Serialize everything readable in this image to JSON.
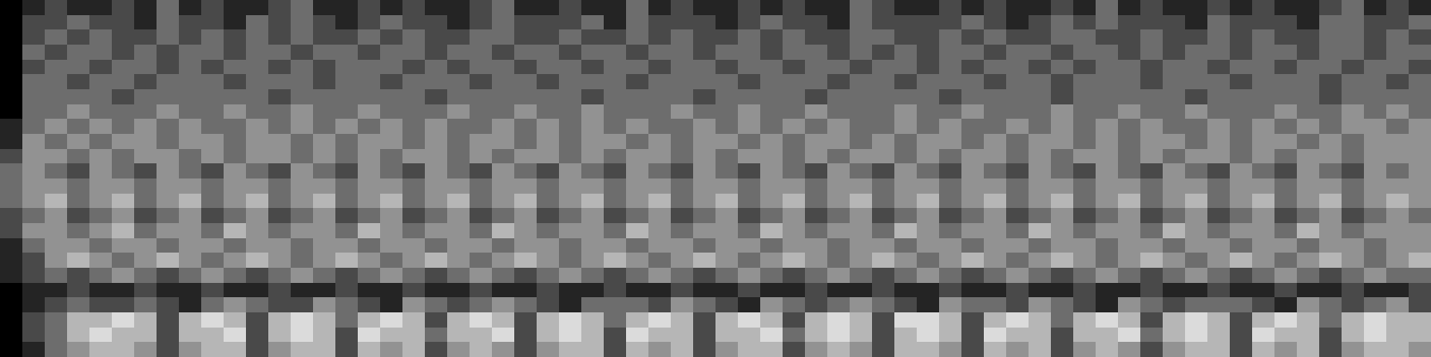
{
  "chart_data": {
    "type": "heatmap",
    "tick_labels": false,
    "zlim": [
      0,
      7
    ],
    "cells": [
      [
        0,
        1,
        2,
        1,
        1,
        2,
        1,
        3,
        1,
        2,
        1,
        1,
        2,
        3,
        1,
        1,
        2,
        1,
        2,
        1,
        1,
        2,
        3,
        1,
        1,
        2,
        1,
        1,
        3,
        1,
        2,
        1,
        1,
        2,
        1,
        2,
        1,
        1,
        3,
        2,
        1,
        1,
        2,
        1,
        2,
        1,
        1,
        2,
        1,
        3,
        1,
        2,
        1,
        1,
        2,
        1,
        2,
        1,
        1,
        2,
        3,
        1,
        2,
        1
      ],
      [
        0,
        2,
        2,
        3,
        2,
        2,
        1,
        3,
        2,
        2,
        1,
        3,
        2,
        3,
        2,
        1,
        2,
        3,
        2,
        2,
        1,
        2,
        3,
        2,
        2,
        2,
        3,
        1,
        3,
        2,
        2,
        2,
        1,
        2,
        3,
        2,
        2,
        1,
        3,
        2,
        2,
        2,
        2,
        3,
        2,
        1,
        2,
        3,
        2,
        3,
        2,
        2,
        2,
        1,
        3,
        2,
        2,
        2,
        1,
        3,
        3,
        2,
        2,
        3
      ],
      [
        0,
        2,
        3,
        2,
        3,
        2,
        2,
        3,
        2,
        3,
        2,
        3,
        2,
        3,
        2,
        2,
        3,
        2,
        3,
        2,
        2,
        3,
        3,
        2,
        2,
        3,
        2,
        2,
        3,
        2,
        3,
        2,
        2,
        3,
        2,
        3,
        2,
        2,
        3,
        3,
        2,
        2,
        3,
        2,
        3,
        2,
        2,
        3,
        3,
        2,
        2,
        3,
        2,
        2,
        3,
        2,
        3,
        2,
        2,
        3,
        3,
        2,
        3,
        2
      ],
      [
        0,
        3,
        2,
        3,
        3,
        2,
        3,
        2,
        3,
        3,
        2,
        3,
        3,
        2,
        3,
        3,
        2,
        3,
        3,
        2,
        3,
        3,
        2,
        3,
        3,
        2,
        3,
        3,
        2,
        3,
        3,
        2,
        3,
        3,
        2,
        3,
        3,
        2,
        3,
        2,
        3,
        2,
        3,
        3,
        2,
        3,
        3,
        2,
        3,
        3,
        2,
        3,
        2,
        3,
        3,
        2,
        3,
        3,
        2,
        3,
        3,
        2,
        3,
        3
      ],
      [
        0,
        2,
        3,
        3,
        2,
        3,
        3,
        2,
        3,
        2,
        3,
        3,
        2,
        3,
        2,
        3,
        3,
        3,
        2,
        3,
        2,
        3,
        3,
        2,
        3,
        3,
        2,
        3,
        3,
        2,
        3,
        3,
        2,
        3,
        3,
        2,
        3,
        3,
        2,
        3,
        3,
        2,
        3,
        2,
        3,
        3,
        2,
        3,
        2,
        3,
        3,
        2,
        3,
        3,
        2,
        3,
        3,
        2,
        3,
        3,
        2,
        3,
        3,
        2
      ],
      [
        0,
        3,
        3,
        2,
        3,
        3,
        2,
        3,
        3,
        3,
        2,
        3,
        3,
        3,
        2,
        3,
        3,
        2,
        3,
        3,
        3,
        2,
        3,
        3,
        2,
        3,
        3,
        3,
        2,
        3,
        3,
        3,
        3,
        2,
        3,
        3,
        3,
        2,
        3,
        3,
        2,
        3,
        3,
        3,
        2,
        3,
        3,
        2,
        3,
        3,
        3,
        2,
        3,
        3,
        3,
        2,
        3,
        3,
        3,
        2,
        3,
        3,
        2,
        3
      ],
      [
        0,
        3,
        3,
        3,
        3,
        2,
        3,
        3,
        3,
        3,
        3,
        3,
        2,
        3,
        3,
        3,
        3,
        3,
        3,
        2,
        3,
        3,
        3,
        3,
        3,
        3,
        2,
        3,
        3,
        3,
        3,
        2,
        3,
        3,
        3,
        3,
        2,
        3,
        3,
        3,
        3,
        3,
        2,
        3,
        3,
        3,
        3,
        2,
        3,
        3,
        3,
        3,
        3,
        2,
        3,
        3,
        3,
        3,
        3,
        2,
        3,
        3,
        3,
        3
      ],
      [
        0,
        3,
        3,
        4,
        3,
        3,
        3,
        4,
        3,
        3,
        4,
        3,
        3,
        4,
        3,
        3,
        4,
        3,
        3,
        3,
        4,
        3,
        3,
        4,
        3,
        3,
        4,
        3,
        3,
        3,
        4,
        3,
        3,
        4,
        3,
        3,
        4,
        3,
        3,
        3,
        4,
        3,
        3,
        4,
        3,
        3,
        3,
        4,
        3,
        3,
        4,
        3,
        3,
        4,
        3,
        3,
        3,
        4,
        3,
        3,
        4,
        3,
        4,
        3
      ],
      [
        1,
        3,
        4,
        3,
        4,
        3,
        4,
        3,
        4,
        3,
        3,
        4,
        3,
        4,
        3,
        4,
        3,
        4,
        3,
        4,
        3,
        3,
        4,
        3,
        4,
        3,
        4,
        3,
        4,
        3,
        3,
        4,
        3,
        4,
        3,
        4,
        3,
        4,
        3,
        3,
        4,
        3,
        4,
        3,
        3,
        4,
        3,
        4,
        3,
        4,
        3,
        4,
        3,
        3,
        4,
        3,
        4,
        3,
        4,
        3,
        4,
        4,
        3,
        4
      ],
      [
        1,
        4,
        3,
        4,
        3,
        4,
        4,
        3,
        4,
        4,
        3,
        4,
        4,
        3,
        4,
        3,
        4,
        4,
        3,
        4,
        3,
        4,
        4,
        3,
        4,
        3,
        4,
        4,
        3,
        4,
        3,
        4,
        4,
        3,
        4,
        3,
        4,
        4,
        3,
        4,
        3,
        4,
        4,
        3,
        4,
        3,
        4,
        4,
        3,
        4,
        3,
        4,
        4,
        3,
        4,
        3,
        4,
        4,
        3,
        4,
        3,
        4,
        4,
        4
      ],
      [
        2,
        4,
        4,
        3,
        4,
        3,
        4,
        4,
        3,
        4,
        3,
        4,
        4,
        3,
        4,
        3,
        4,
        3,
        4,
        4,
        3,
        4,
        3,
        4,
        4,
        3,
        4,
        3,
        4,
        4,
        3,
        4,
        3,
        4,
        4,
        3,
        4,
        3,
        4,
        4,
        3,
        4,
        3,
        4,
        4,
        3,
        4,
        3,
        4,
        4,
        3,
        4,
        3,
        4,
        4,
        3,
        4,
        3,
        4,
        4,
        3,
        4,
        4,
        4
      ],
      [
        3,
        4,
        3,
        2,
        4,
        3,
        2,
        4,
        3,
        2,
        4,
        3,
        2,
        4,
        3,
        2,
        4,
        3,
        2,
        4,
        3,
        2,
        4,
        3,
        2,
        4,
        3,
        2,
        4,
        3,
        2,
        4,
        3,
        2,
        4,
        3,
        2,
        4,
        3,
        2,
        4,
        3,
        2,
        4,
        3,
        2,
        4,
        3,
        2,
        4,
        3,
        2,
        4,
        3,
        2,
        4,
        3,
        2,
        4,
        3,
        2,
        4,
        3,
        4
      ],
      [
        3,
        4,
        4,
        3,
        4,
        4,
        3,
        4,
        4,
        3,
        4,
        4,
        3,
        4,
        4,
        3,
        4,
        4,
        3,
        4,
        4,
        3,
        4,
        4,
        3,
        4,
        4,
        3,
        4,
        4,
        3,
        4,
        4,
        3,
        4,
        4,
        3,
        4,
        4,
        3,
        4,
        4,
        3,
        4,
        4,
        3,
        4,
        4,
        3,
        4,
        4,
        3,
        4,
        4,
        3,
        4,
        4,
        3,
        4,
        4,
        3,
        4,
        4,
        4
      ],
      [
        3,
        4,
        5,
        3,
        4,
        5,
        3,
        4,
        5,
        3,
        4,
        5,
        3,
        4,
        5,
        3,
        4,
        5,
        3,
        4,
        5,
        3,
        4,
        5,
        3,
        4,
        5,
        3,
        4,
        5,
        3,
        4,
        5,
        3,
        4,
        5,
        3,
        4,
        5,
        3,
        4,
        5,
        3,
        4,
        5,
        3,
        4,
        5,
        3,
        4,
        5,
        3,
        4,
        5,
        3,
        4,
        5,
        3,
        4,
        5,
        3,
        4,
        5,
        4
      ],
      [
        2,
        3,
        4,
        2,
        3,
        4,
        2,
        3,
        4,
        2,
        3,
        4,
        2,
        3,
        4,
        2,
        3,
        4,
        2,
        3,
        4,
        2,
        3,
        4,
        2,
        3,
        4,
        2,
        3,
        4,
        2,
        3,
        4,
        2,
        3,
        4,
        2,
        3,
        4,
        2,
        3,
        4,
        2,
        3,
        4,
        2,
        3,
        4,
        2,
        3,
        4,
        2,
        3,
        4,
        2,
        3,
        4,
        2,
        3,
        4,
        2,
        3,
        4,
        3
      ],
      [
        2,
        4,
        4,
        3,
        4,
        5,
        3,
        4,
        4,
        3,
        5,
        4,
        3,
        4,
        4,
        3,
        5,
        4,
        3,
        4,
        4,
        3,
        5,
        4,
        3,
        4,
        4,
        3,
        5,
        4,
        3,
        4,
        4,
        3,
        5,
        4,
        3,
        4,
        4,
        3,
        5,
        4,
        3,
        4,
        4,
        3,
        5,
        4,
        3,
        4,
        4,
        3,
        5,
        4,
        3,
        4,
        4,
        3,
        5,
        4,
        3,
        4,
        4,
        4
      ],
      [
        1,
        3,
        4,
        4,
        3,
        4,
        4,
        3,
        4,
        4,
        3,
        4,
        4,
        3,
        4,
        4,
        3,
        4,
        4,
        3,
        4,
        4,
        3,
        4,
        4,
        3,
        4,
        4,
        3,
        4,
        4,
        3,
        4,
        4,
        3,
        4,
        4,
        3,
        4,
        4,
        3,
        4,
        4,
        3,
        4,
        4,
        3,
        4,
        4,
        3,
        4,
        4,
        3,
        4,
        4,
        3,
        4,
        4,
        3,
        4,
        4,
        3,
        4,
        4
      ],
      [
        1,
        2,
        4,
        5,
        4,
        3,
        4,
        5,
        4,
        3,
        4,
        5,
        4,
        3,
        4,
        5,
        4,
        3,
        4,
        5,
        4,
        3,
        4,
        5,
        4,
        3,
        4,
        5,
        4,
        3,
        4,
        5,
        4,
        3,
        4,
        5,
        4,
        3,
        4,
        5,
        4,
        3,
        4,
        5,
        4,
        3,
        4,
        5,
        4,
        3,
        4,
        5,
        4,
        3,
        4,
        5,
        4,
        3,
        4,
        5,
        4,
        3,
        4,
        5
      ],
      [
        1,
        2,
        3,
        2,
        3,
        4,
        3,
        2,
        3,
        4,
        3,
        2,
        3,
        4,
        3,
        2,
        3,
        4,
        3,
        2,
        3,
        4,
        3,
        2,
        3,
        4,
        3,
        2,
        3,
        4,
        3,
        2,
        3,
        4,
        3,
        2,
        3,
        4,
        3,
        2,
        3,
        4,
        3,
        2,
        3,
        4,
        3,
        2,
        3,
        4,
        3,
        2,
        3,
        4,
        3,
        2,
        3,
        4,
        3,
        2,
        3,
        4,
        3,
        3
      ],
      [
        0,
        1,
        1,
        2,
        1,
        1,
        2,
        1,
        1,
        2,
        1,
        1,
        2,
        1,
        1,
        2,
        1,
        1,
        2,
        1,
        1,
        2,
        1,
        1,
        2,
        1,
        1,
        2,
        1,
        1,
        2,
        1,
        1,
        2,
        1,
        1,
        2,
        1,
        1,
        2,
        1,
        1,
        2,
        1,
        1,
        2,
        1,
        1,
        2,
        1,
        1,
        2,
        1,
        1,
        2,
        1,
        1,
        2,
        1,
        1,
        2,
        1,
        1,
        2
      ],
      [
        0,
        1,
        2,
        3,
        2,
        2,
        3,
        2,
        1,
        3,
        4,
        3,
        2,
        2,
        4,
        3,
        2,
        1,
        4,
        3,
        2,
        3,
        4,
        3,
        2,
        1,
        3,
        3,
        3,
        2,
        4,
        3,
        2,
        1,
        4,
        3,
        2,
        3,
        4,
        3,
        2,
        1,
        4,
        3,
        3,
        2,
        4,
        3,
        2,
        1,
        4,
        3,
        2,
        3,
        3,
        3,
        2,
        1,
        4,
        3,
        2,
        3,
        4,
        2
      ],
      [
        0,
        2,
        3,
        5,
        5,
        6,
        5,
        2,
        5,
        6,
        5,
        2,
        5,
        6,
        5,
        3,
        5,
        6,
        5,
        2,
        5,
        6,
        5,
        2,
        5,
        6,
        5,
        3,
        5,
        6,
        5,
        2,
        5,
        6,
        5,
        2,
        5,
        6,
        5,
        2,
        6,
        6,
        5,
        2,
        5,
        6,
        5,
        3,
        5,
        6,
        5,
        2,
        5,
        6,
        5,
        2,
        5,
        6,
        5,
        3,
        5,
        6,
        5,
        5
      ],
      [
        0,
        2,
        3,
        5,
        6,
        5,
        5,
        2,
        5,
        5,
        6,
        2,
        5,
        6,
        5,
        2,
        6,
        5,
        5,
        3,
        5,
        5,
        6,
        2,
        5,
        6,
        5,
        2,
        6,
        5,
        5,
        2,
        5,
        5,
        6,
        3,
        5,
        6,
        5,
        2,
        5,
        6,
        5,
        2,
        6,
        5,
        5,
        2,
        5,
        5,
        6,
        3,
        5,
        6,
        5,
        2,
        6,
        5,
        5,
        2,
        5,
        6,
        5,
        5
      ],
      [
        0,
        1,
        3,
        4,
        5,
        5,
        4,
        2,
        4,
        5,
        5,
        2,
        4,
        5,
        5,
        2,
        5,
        4,
        5,
        2,
        4,
        5,
        4,
        2,
        4,
        5,
        5,
        2,
        5,
        4,
        5,
        2,
        4,
        5,
        5,
        2,
        4,
        5,
        4,
        2,
        5,
        5,
        4,
        2,
        5,
        4,
        5,
        2,
        4,
        5,
        4,
        2,
        4,
        5,
        5,
        2,
        5,
        4,
        5,
        2,
        4,
        5,
        5,
        4
      ]
    ]
  }
}
